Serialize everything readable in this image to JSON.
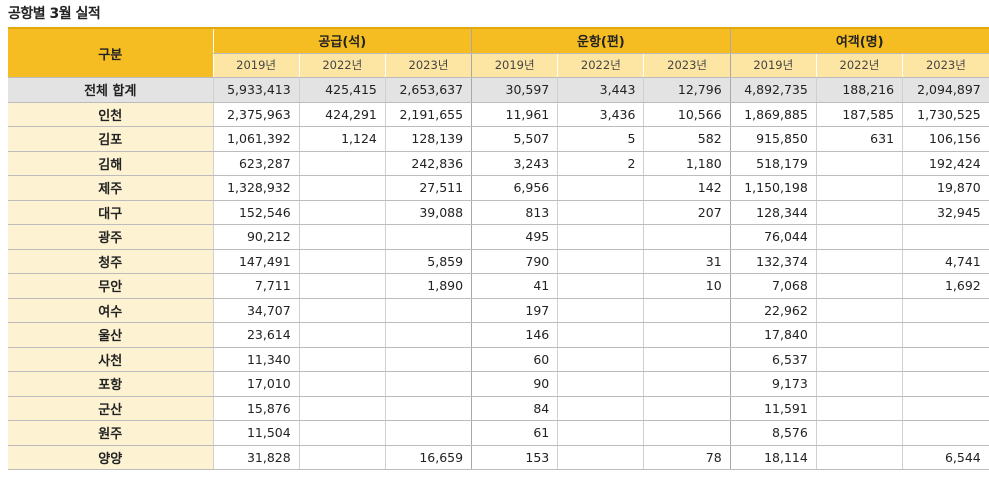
{
  "title": "공항별 3월 실적",
  "header": {
    "category": "구분",
    "groups": [
      "공급(석)",
      "운항(편)",
      "여객(명)"
    ],
    "years": [
      "2019년",
      "2022년",
      "2023년",
      "2019년",
      "2022년",
      "2023년",
      "2019년",
      "2022년",
      "2023년"
    ]
  },
  "rows": [
    {
      "label": "전체 합계",
      "values": [
        "5,933,413",
        "425,415",
        "2,653,637",
        "30,597",
        "3,443",
        "12,796",
        "4,892,735",
        "188,216",
        "2,094,897"
      ]
    },
    {
      "label": "인천",
      "values": [
        "2,375,963",
        "424,291",
        "2,191,655",
        "11,961",
        "3,436",
        "10,566",
        "1,869,885",
        "187,585",
        "1,730,525"
      ]
    },
    {
      "label": "김포",
      "values": [
        "1,061,392",
        "1,124",
        "128,139",
        "5,507",
        "5",
        "582",
        "915,850",
        "631",
        "106,156"
      ]
    },
    {
      "label": "김해",
      "values": [
        "623,287",
        "",
        "242,836",
        "3,243",
        "2",
        "1,180",
        "518,179",
        "",
        "192,424"
      ]
    },
    {
      "label": "제주",
      "values": [
        "1,328,932",
        "",
        "27,511",
        "6,956",
        "",
        "142",
        "1,150,198",
        "",
        "19,870"
      ]
    },
    {
      "label": "대구",
      "values": [
        "152,546",
        "",
        "39,088",
        "813",
        "",
        "207",
        "128,344",
        "",
        "32,945"
      ]
    },
    {
      "label": "광주",
      "values": [
        "90,212",
        "",
        "",
        "495",
        "",
        "",
        "76,044",
        "",
        ""
      ]
    },
    {
      "label": "청주",
      "values": [
        "147,491",
        "",
        "5,859",
        "790",
        "",
        "31",
        "132,374",
        "",
        "4,741"
      ]
    },
    {
      "label": "무안",
      "values": [
        "7,711",
        "",
        "1,890",
        "41",
        "",
        "10",
        "7,068",
        "",
        "1,692"
      ]
    },
    {
      "label": "여수",
      "values": [
        "34,707",
        "",
        "",
        "197",
        "",
        "",
        "22,962",
        "",
        ""
      ]
    },
    {
      "label": "울산",
      "values": [
        "23,614",
        "",
        "",
        "146",
        "",
        "",
        "17,840",
        "",
        ""
      ]
    },
    {
      "label": "사천",
      "values": [
        "11,340",
        "",
        "",
        "60",
        "",
        "",
        "6,537",
        "",
        ""
      ]
    },
    {
      "label": "포항",
      "values": [
        "17,010",
        "",
        "",
        "90",
        "",
        "",
        "9,173",
        "",
        ""
      ]
    },
    {
      "label": "군산",
      "values": [
        "15,876",
        "",
        "",
        "84",
        "",
        "",
        "11,591",
        "",
        ""
      ]
    },
    {
      "label": "원주",
      "values": [
        "11,504",
        "",
        "",
        "61",
        "",
        "",
        "8,576",
        "",
        ""
      ]
    },
    {
      "label": "양양",
      "values": [
        "31,828",
        "",
        "16,659",
        "153",
        "",
        "78",
        "18,114",
        "",
        "6,544"
      ]
    }
  ]
}
